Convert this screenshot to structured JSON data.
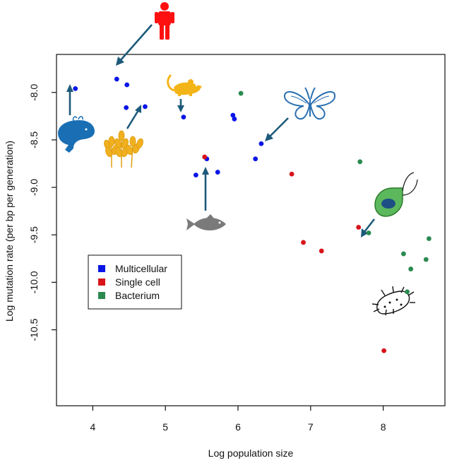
{
  "chart_data": {
    "type": "scatter",
    "title": "",
    "xlabel": "Log population size",
    "ylabel": "Log mutation rate (per bp per generation)",
    "xlim": [
      3.5,
      8.85
    ],
    "ylim": [
      -11.3,
      -7.6
    ],
    "xticks": [
      4,
      5,
      6,
      7,
      8
    ],
    "xtick_labels": [
      "4",
      "5",
      "6",
      "7",
      "8"
    ],
    "yticks": [
      -8.0,
      -8.5,
      -9.0,
      -9.5,
      -10.0,
      -10.5
    ],
    "ytick_labels": [
      "-8.0",
      "-8.5",
      "-9.0",
      "-9.5",
      "-10.0",
      "-10.5"
    ],
    "grid": false,
    "legend_position": "center-left",
    "series": [
      {
        "name": "Multicellular",
        "color": "#0a16e6",
        "points": [
          {
            "x": 3.76,
            "y": -7.96
          },
          {
            "x": 4.33,
            "y": -7.86
          },
          {
            "x": 4.47,
            "y": -7.92
          },
          {
            "x": 4.46,
            "y": -8.16
          },
          {
            "x": 4.72,
            "y": -8.15
          },
          {
            "x": 5.25,
            "y": -8.26
          },
          {
            "x": 5.93,
            "y": -8.24
          },
          {
            "x": 5.95,
            "y": -8.28
          },
          {
            "x": 6.32,
            "y": -8.54
          },
          {
            "x": 6.24,
            "y": -8.7
          },
          {
            "x": 5.57,
            "y": -8.7
          },
          {
            "x": 5.42,
            "y": -8.87
          },
          {
            "x": 5.72,
            "y": -8.84
          }
        ]
      },
      {
        "name": "Single cell",
        "color": "#d8141a",
        "points": [
          {
            "x": 5.54,
            "y": -8.68
          },
          {
            "x": 6.74,
            "y": -8.86
          },
          {
            "x": 7.66,
            "y": -9.42
          },
          {
            "x": 6.9,
            "y": -9.58
          },
          {
            "x": 7.15,
            "y": -9.67
          },
          {
            "x": 8.01,
            "y": -10.72
          }
        ]
      },
      {
        "name": "Bacterium",
        "color": "#2a8a50",
        "points": [
          {
            "x": 6.04,
            "y": -8.01
          },
          {
            "x": 7.68,
            "y": -8.73
          },
          {
            "x": 7.8,
            "y": -9.48
          },
          {
            "x": 8.63,
            "y": -9.54
          },
          {
            "x": 8.28,
            "y": -9.7
          },
          {
            "x": 8.59,
            "y": -9.76
          },
          {
            "x": 8.38,
            "y": -9.86
          },
          {
            "x": 8.33,
            "y": -10.1
          }
        ]
      }
    ],
    "annotations": [
      {
        "organism": "human-icon",
        "color": "#ff1010"
      },
      {
        "organism": "whale-icon",
        "color": "#1a6fb4"
      },
      {
        "organism": "wheat-icon",
        "color": "#f0b020"
      },
      {
        "organism": "mouse-icon",
        "color": "#f3b418"
      },
      {
        "organism": "butterfly-icon",
        "color": "#2a6fb0"
      },
      {
        "organism": "fish-icon",
        "color": "#7a7a7a"
      },
      {
        "organism": "flagellate-cell-icon",
        "color": "#5cb85c"
      },
      {
        "organism": "bacterium-icon",
        "color": "#111111"
      }
    ],
    "arrow_color": "#1d5a7a"
  }
}
